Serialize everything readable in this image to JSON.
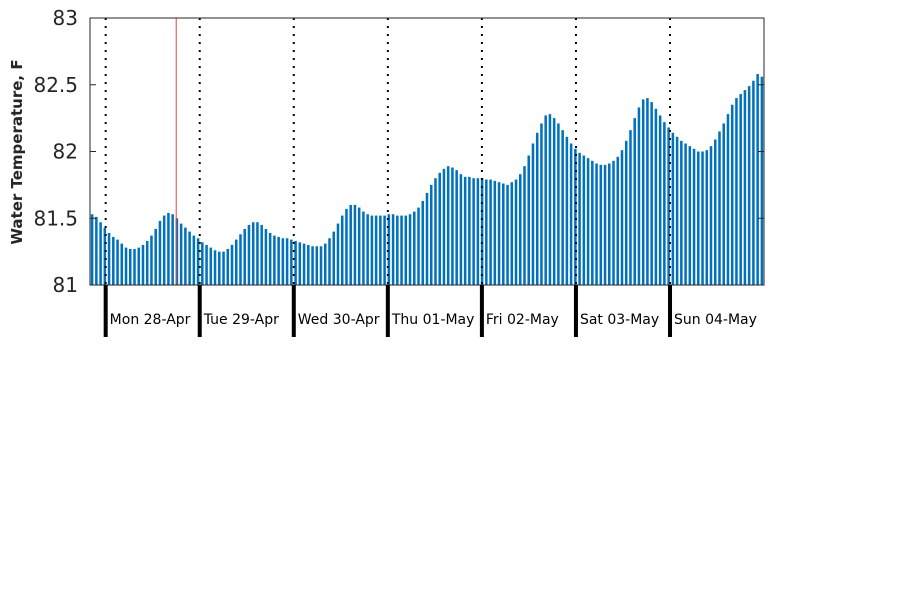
{
  "chart_data": {
    "type": "bar",
    "title": "",
    "xlabel": "",
    "ylabel": "Water Temperature, F",
    "ylim": [
      81,
      83
    ],
    "yticks": [
      81,
      81.5,
      82,
      82.5,
      83
    ],
    "ytick_labels": [
      "81",
      "81.5",
      "82",
      "82.5",
      "83"
    ],
    "bar_color": "#0072BD",
    "marker_color": "#E8433A",
    "day_labels": [
      "Mon 28-Apr",
      "Tue 29-Apr",
      "Wed 30-Apr",
      "Thu 01-May",
      "Fri 02-May",
      "Sat 03-May",
      "Sun 04-May"
    ],
    "x_start": "2025-04-27 20:00",
    "x_end": "2025-05-04 23:59",
    "marker_time": "2025-04-28 18:00",
    "values": [
      81.53,
      81.51,
      81.47,
      81.43,
      81.39,
      81.36,
      81.34,
      81.31,
      81.28,
      81.27,
      81.27,
      81.28,
      81.3,
      81.33,
      81.37,
      81.42,
      81.48,
      81.52,
      81.54,
      81.53,
      81.5,
      81.46,
      81.43,
      81.4,
      81.37,
      81.35,
      81.32,
      81.3,
      81.28,
      81.26,
      81.25,
      81.25,
      81.27,
      81.3,
      81.34,
      81.38,
      81.42,
      81.45,
      81.47,
      81.47,
      81.45,
      81.42,
      81.39,
      81.37,
      81.36,
      81.35,
      81.35,
      81.34,
      81.33,
      81.32,
      81.31,
      81.3,
      81.29,
      81.29,
      81.29,
      81.31,
      81.35,
      81.4,
      81.46,
      81.52,
      81.57,
      81.6,
      81.6,
      81.58,
      81.55,
      81.53,
      81.52,
      81.52,
      81.52,
      81.52,
      81.53,
      81.53,
      81.52,
      81.52,
      81.52,
      81.53,
      81.55,
      81.58,
      81.63,
      81.69,
      81.75,
      81.8,
      81.84,
      81.87,
      81.89,
      81.88,
      81.86,
      81.83,
      81.81,
      81.81,
      81.8,
      81.8,
      81.8,
      81.79,
      81.79,
      81.78,
      81.77,
      81.76,
      81.75,
      81.77,
      81.79,
      81.83,
      81.89,
      81.97,
      82.06,
      82.14,
      82.21,
      82.27,
      82.28,
      82.25,
      82.21,
      82.16,
      82.11,
      82.06,
      82.02,
      81.99,
      81.97,
      81.95,
      81.93,
      81.91,
      81.9,
      81.9,
      81.91,
      81.93,
      81.96,
      82.01,
      82.08,
      82.16,
      82.25,
      82.33,
      82.39,
      82.4,
      82.37,
      82.32,
      82.27,
      82.22,
      82.18,
      82.14,
      82.11,
      82.08,
      82.06,
      82.04,
      82.02,
      82.0,
      82.0,
      82.01,
      82.04,
      82.09,
      82.15,
      82.21,
      82.28,
      82.35,
      82.4,
      82.43,
      82.46,
      82.49,
      82.53,
      82.58,
      82.56
    ]
  }
}
